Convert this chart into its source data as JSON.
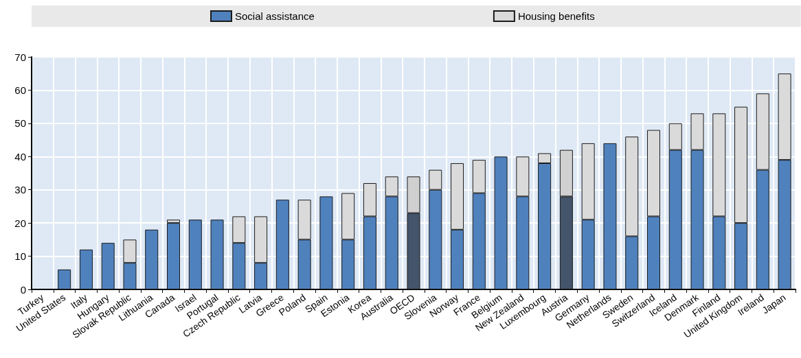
{
  "chart_data": {
    "type": "bar",
    "stacked": true,
    "legend": "top",
    "grid": true,
    "categories": [
      "Turkey",
      "United States",
      "Italy",
      "Hungary",
      "Slovak Republic",
      "Lithuania",
      "Canada",
      "Israel",
      "Portugal",
      "Czech Republic",
      "Latvia",
      "Greece",
      "Poland",
      "Spain",
      "Estonia",
      "Korea",
      "Australia",
      "OECD",
      "Slovenia",
      "Norway",
      "France",
      "Belgium",
      "New Zealand",
      "Luxembourg",
      "Austria",
      "Germany",
      "Netherlands",
      "Sweden",
      "Switzerland",
      "Iceland",
      "Denmark",
      "Finland",
      "United Kingdom",
      "Ireland",
      "Japan"
    ],
    "ylim": [
      0,
      70
    ],
    "yticks": [
      0,
      10,
      20,
      30,
      40,
      50,
      60,
      70
    ],
    "series": [
      {
        "name": "Social assistance",
        "color": "#4f81bd",
        "colors": [
          "#4f81bd",
          "#4f81bd",
          "#4f81bd",
          "#4f81bd",
          "#4f81bd",
          "#4f81bd",
          "#4f81bd",
          "#4f81bd",
          "#4f81bd",
          "#4f81bd",
          "#4f81bd",
          "#4f81bd",
          "#4f81bd",
          "#4f81bd",
          "#4f81bd",
          "#4f81bd",
          "#4f81bd",
          "#44546a",
          "#4f81bd",
          "#4f81bd",
          "#4f81bd",
          "#4f81bd",
          "#4f81bd",
          "#4f81bd",
          "#44546a",
          "#4f81bd",
          "#4f81bd",
          "#4f81bd",
          "#4f81bd",
          "#4f81bd",
          "#4f81bd",
          "#4f81bd",
          "#4f81bd",
          "#4f81bd",
          "#4f81bd"
        ],
        "values": [
          0,
          6,
          12,
          14,
          8,
          18,
          20,
          21,
          21,
          14,
          8,
          27,
          15,
          28,
          15,
          22,
          28,
          23,
          30,
          18,
          29,
          40,
          28,
          38,
          28,
          21,
          44,
          16,
          22,
          42,
          42,
          22,
          20,
          36,
          39
        ]
      },
      {
        "name": "Housing benefits",
        "color": "#dadada",
        "colors": [
          "#dadada",
          "#dadada",
          "#dadada",
          "#dadada",
          "#dadada",
          "#dadada",
          "#dadada",
          "#dadada",
          "#dadada",
          "#dadada",
          "#dadada",
          "#dadada",
          "#dadada",
          "#dadada",
          "#dadada",
          "#dadada",
          "#dadada",
          "#d0d0d0",
          "#dadada",
          "#dadada",
          "#dadada",
          "#dadada",
          "#dadada",
          "#dadada",
          "#d0d0d0",
          "#dadada",
          "#dadada",
          "#dadada",
          "#dadada",
          "#dadada",
          "#dadada",
          "#dadada",
          "#dadada",
          "#dadada",
          "#dadada"
        ],
        "values": [
          0,
          0,
          0,
          0,
          7,
          0,
          1,
          0,
          0,
          8,
          14,
          0,
          12,
          0,
          14,
          10,
          6,
          11,
          6,
          20,
          10,
          0,
          12,
          3,
          14,
          23,
          0,
          30,
          26,
          8,
          11,
          31,
          35,
          23,
          26
        ]
      }
    ]
  }
}
